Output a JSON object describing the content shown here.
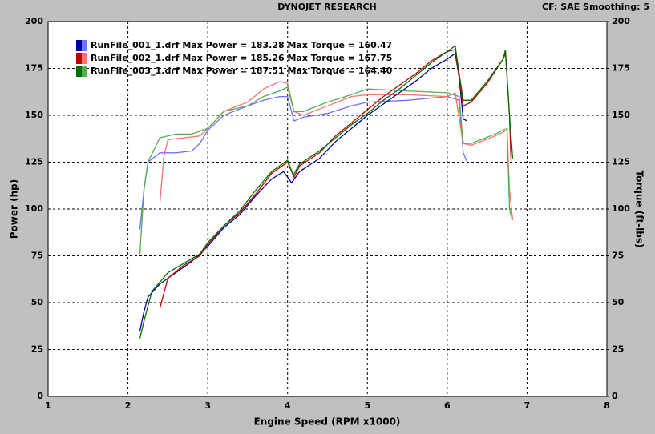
{
  "chart_data": {
    "type": "line",
    "title": "DYNOJET RESEARCH",
    "subtitle": "CF: SAE  Smoothing: 5",
    "x_label": "Engine Speed (RPM x1000)",
    "y_label": "Power (hp)",
    "y2_label": "Torque (ft-lbs)",
    "xlim": [
      1,
      8
    ],
    "xticks": [
      1,
      2,
      3,
      4,
      5,
      6,
      7,
      8
    ],
    "ylim": [
      0,
      200
    ],
    "yticks": [
      0,
      25,
      50,
      75,
      100,
      125,
      150,
      175,
      200
    ],
    "y2lim": [
      0,
      200
    ],
    "y2ticks": [
      0,
      25,
      50,
      75,
      100,
      125,
      150,
      175,
      200
    ],
    "grid": true,
    "series": [
      {
        "name": "RunFile_001_1.drf Max Power = 183.28 Max Torque = 160.47",
        "color": "#0000a0",
        "x": [
          2.15,
          2.2,
          2.25,
          2.4,
          2.6,
          2.8,
          3.0,
          3.2,
          3.4,
          3.6,
          3.8,
          3.95,
          4.05,
          4.15,
          4.4,
          4.6,
          4.8,
          5.0,
          5.2,
          5.4,
          5.6,
          5.8,
          6.0,
          6.1,
          6.15,
          6.2,
          6.25
        ],
        "values": [
          35,
          45,
          53,
          60,
          66,
          72,
          80,
          90,
          97,
          107,
          116,
          120,
          114,
          120,
          127,
          136,
          143,
          150,
          156,
          162,
          168,
          175,
          180,
          183,
          170,
          148,
          147
        ]
      },
      {
        "name": "RunFile_002_1.drf Max Power = 185.26 Max Torque = 167.75",
        "color": "#c00000",
        "x": [
          2.4,
          2.5,
          2.7,
          2.9,
          3.0,
          3.2,
          3.4,
          3.6,
          3.8,
          4.0,
          4.08,
          4.15,
          4.4,
          4.6,
          4.8,
          5.0,
          5.2,
          5.4,
          5.6,
          5.8,
          6.0,
          6.1,
          6.15,
          6.2,
          6.3,
          6.5,
          6.7,
          6.73,
          6.78,
          6.8
        ],
        "values": [
          47,
          63,
          70,
          75,
          81,
          91,
          98,
          108,
          119,
          125,
          117,
          123,
          130,
          139,
          146,
          153,
          160,
          166,
          172,
          179,
          184,
          185,
          170,
          155,
          157,
          167,
          180,
          183,
          150,
          125
        ]
      },
      {
        "name": "RunFile_003_1.drf Max Power = 187.51 Max Torque = 164.40",
        "color": "#007000",
        "x": [
          2.15,
          2.2,
          2.3,
          2.5,
          2.7,
          2.9,
          3.0,
          3.2,
          3.4,
          3.6,
          3.8,
          4.0,
          4.07,
          4.15,
          4.4,
          4.6,
          4.8,
          5.0,
          5.2,
          5.4,
          5.6,
          5.8,
          6.0,
          6.1,
          6.15,
          6.2,
          6.3,
          6.5,
          6.7,
          6.73,
          6.78,
          6.82
        ],
        "values": [
          31,
          40,
          56,
          66,
          71,
          76,
          82,
          91,
          99,
          110,
          120,
          126,
          118,
          124,
          131,
          138,
          145,
          151,
          158,
          164,
          171,
          178,
          184,
          187,
          172,
          158,
          158,
          168,
          180,
          185,
          150,
          127
        ]
      }
    ],
    "torque_series": [
      {
        "color": "#7070ff",
        "axis": "y2",
        "x": [
          2.15,
          2.2,
          2.25,
          2.4,
          2.6,
          2.8,
          2.9,
          3.0,
          3.2,
          3.5,
          3.7,
          3.9,
          4.0,
          4.08,
          4.2,
          4.5,
          4.8,
          5.0,
          5.5,
          6.0,
          6.15,
          6.2,
          6.25
        ],
        "values": [
          89,
          110,
          125,
          130,
          130,
          131,
          135,
          142,
          150,
          155,
          158,
          160,
          160,
          147,
          149,
          151,
          155,
          157,
          158,
          160,
          158,
          130,
          125
        ]
      },
      {
        "color": "#ff7070",
        "axis": "y2",
        "x": [
          2.4,
          2.45,
          2.5,
          2.7,
          2.9,
          3.0,
          3.2,
          3.5,
          3.7,
          3.9,
          4.0,
          4.08,
          4.2,
          4.5,
          4.8,
          5.0,
          5.5,
          6.0,
          6.1,
          6.2,
          6.3,
          6.6,
          6.75,
          6.78,
          6.82
        ],
        "values": [
          103,
          128,
          137,
          138,
          139,
          143,
          152,
          157,
          164,
          168,
          167,
          152,
          150,
          155,
          160,
          161,
          161,
          160,
          162,
          135,
          134,
          139,
          142,
          110,
          94
        ]
      },
      {
        "color": "#50b050",
        "axis": "y2",
        "x": [
          2.15,
          2.2,
          2.25,
          2.4,
          2.6,
          2.8,
          3.0,
          3.2,
          3.5,
          3.7,
          3.9,
          4.0,
          4.08,
          4.2,
          4.5,
          4.8,
          5.0,
          5.5,
          6.0,
          6.15,
          6.2,
          6.3,
          6.6,
          6.75,
          6.78,
          6.8
        ],
        "values": [
          76,
          110,
          125,
          138,
          140,
          140,
          143,
          152,
          155,
          160,
          163,
          165,
          152,
          152,
          157,
          161,
          164,
          163,
          162,
          160,
          135,
          135,
          140,
          143,
          100,
          96
        ]
      }
    ]
  }
}
